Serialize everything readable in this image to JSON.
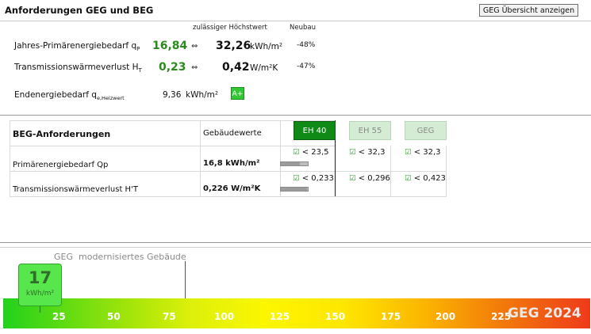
{
  "header": {
    "title": "Anforderungen GEG und BEG",
    "button_label": "GEG Übersicht anzeigen"
  },
  "geg": {
    "col_max": "zulässiger Höchstwert",
    "col_new": "Neubau",
    "rows": [
      {
        "label_main": "Jahres-Primärenergiebedarf q",
        "label_sub": "P",
        "value": "16,84",
        "arrow": "⇔",
        "max": "32,26",
        "unit": "kWh/m²",
        "pct": "-48%"
      },
      {
        "label_main": "Transmissionswärmeverlust H",
        "label_sub": "T",
        "value": "0,23",
        "arrow": "⇔",
        "max": "0,42",
        "unit": "W/m²K",
        "pct": "-47%"
      }
    ],
    "end": {
      "label_main": "Endenergiebedarf q",
      "label_sub": "e,Heizwert",
      "value": "9,36",
      "unit": "kWh/m²",
      "badge": "A+"
    }
  },
  "beg": {
    "heading": "BEG-Anforderungen",
    "col_values": "Gebäudewerte",
    "eh_labels": [
      "EH 40",
      "EH 55",
      "GEG"
    ],
    "rows": [
      {
        "label": "Primärenergiebedarf Qp",
        "value": "16,8 kWh/m²",
        "checks": [
          "< 23,5",
          "< 32,3",
          "< 32,3"
        ],
        "bar_fill": 0.72
      },
      {
        "label": "Transmissionswärmeverlust H'T",
        "value": "0,226 W/m²K",
        "checks": [
          "< 0,233",
          "< 0,296",
          "< 0,423"
        ],
        "bar_fill": 0.97
      }
    ]
  },
  "scale": {
    "caption_left": "GEG",
    "caption_right": "modernisiertes Gebäude",
    "marker_value": "17",
    "marker_unit": "kWh/m²",
    "ticks": [
      "25",
      "50",
      "75",
      "100",
      "125",
      "150",
      "175",
      "200",
      "225"
    ],
    "label": "GEG 2024"
  }
}
